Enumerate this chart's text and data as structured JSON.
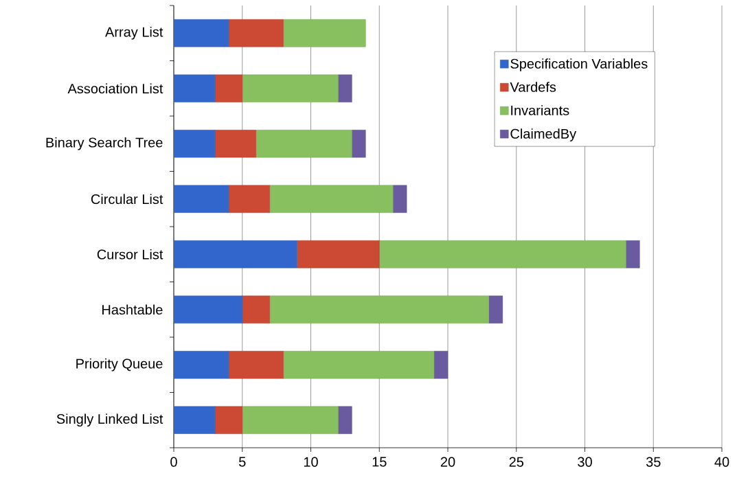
{
  "chart_data": {
    "type": "bar",
    "orientation": "horizontal",
    "stacked": true,
    "categories": [
      "Array List",
      "Association List",
      "Binary Search Tree",
      "Circular List",
      "Cursor List",
      "Hashtable",
      "Priority Queue",
      "Singly Linked List"
    ],
    "series": [
      {
        "name": "Specification Variables",
        "color": "#3366cc",
        "values": [
          4,
          3,
          3,
          4,
          9,
          5,
          4,
          3
        ]
      },
      {
        "name": "Vardefs",
        "color": "#cc4a33",
        "values": [
          4,
          2,
          3,
          3,
          6,
          2,
          4,
          2
        ]
      },
      {
        "name": "Invariants",
        "color": "#88c060",
        "values": [
          6,
          7,
          7,
          9,
          18,
          16,
          11,
          7
        ]
      },
      {
        "name": "ClaimedBy",
        "color": "#6a5aa0",
        "values": [
          0,
          1,
          1,
          1,
          1,
          1,
          1,
          1
        ]
      }
    ],
    "xlim": [
      0,
      40
    ],
    "xticks": [
      0,
      5,
      10,
      15,
      20,
      25,
      30,
      35,
      40
    ],
    "grid": "x",
    "legend": "top right"
  }
}
